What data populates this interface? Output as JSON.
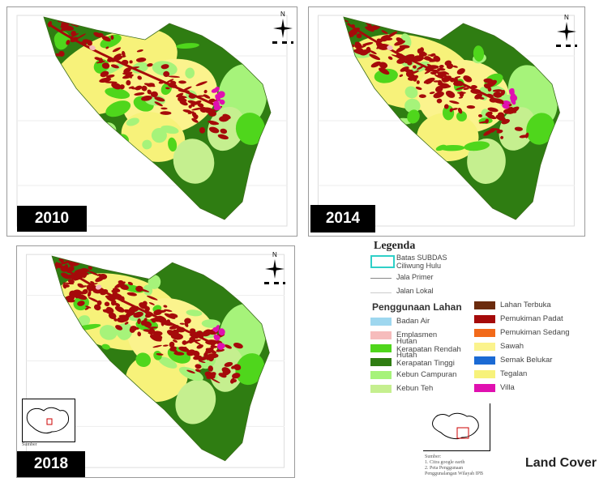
{
  "panels": [
    {
      "year": "2010"
    },
    {
      "year": "2014"
    },
    {
      "year": "2018"
    }
  ],
  "compass_label": "N",
  "inset_label": "Sumber",
  "legend": {
    "title": "Legenda",
    "boundary_label_1": "Batas SUBDAS",
    "boundary_label_2": "Ciliwung Hulu",
    "road_primary": "Jala Primer",
    "road_local": "Jalan Lokal",
    "landuse_heading": "Penggunaan Lahan",
    "left_items": [
      {
        "label": "Badan Air",
        "color": "#9ed7ef"
      },
      {
        "label": "Emplasmen",
        "color": "#f6bcbc"
      },
      {
        "label": "Hutan\nKerapatan Rendah",
        "color": "#4fd61c"
      },
      {
        "label": "Hutan\nKerapatan Tinggi",
        "color": "#2f7d12"
      },
      {
        "label": "Kebun Campuran",
        "color": "#a6f37a"
      },
      {
        "label": "Kebun Teh",
        "color": "#c5ef8f"
      }
    ],
    "right_items": [
      {
        "label": "Lahan Terbuka",
        "color": "#6b2b0d"
      },
      {
        "label": "Pemukiman Padat",
        "color": "#a50a0a"
      },
      {
        "label": "Pemukiman Sedang",
        "color": "#f26a1a"
      },
      {
        "label": "Sawah",
        "color": "#fbf38d"
      },
      {
        "label": "Semak Belukar",
        "color": "#1b6ad4"
      },
      {
        "label": "Tegalan",
        "color": "#f7f27a"
      },
      {
        "label": "Villa",
        "color": "#e010b0"
      }
    ]
  },
  "source": {
    "heading": "Sumber:",
    "line1": "1. Citra google earth",
    "line2": "2. Peta Penggunaan",
    "line3": "Penggunalangan Wilayah IPB"
  },
  "caption": "Land Cover"
}
